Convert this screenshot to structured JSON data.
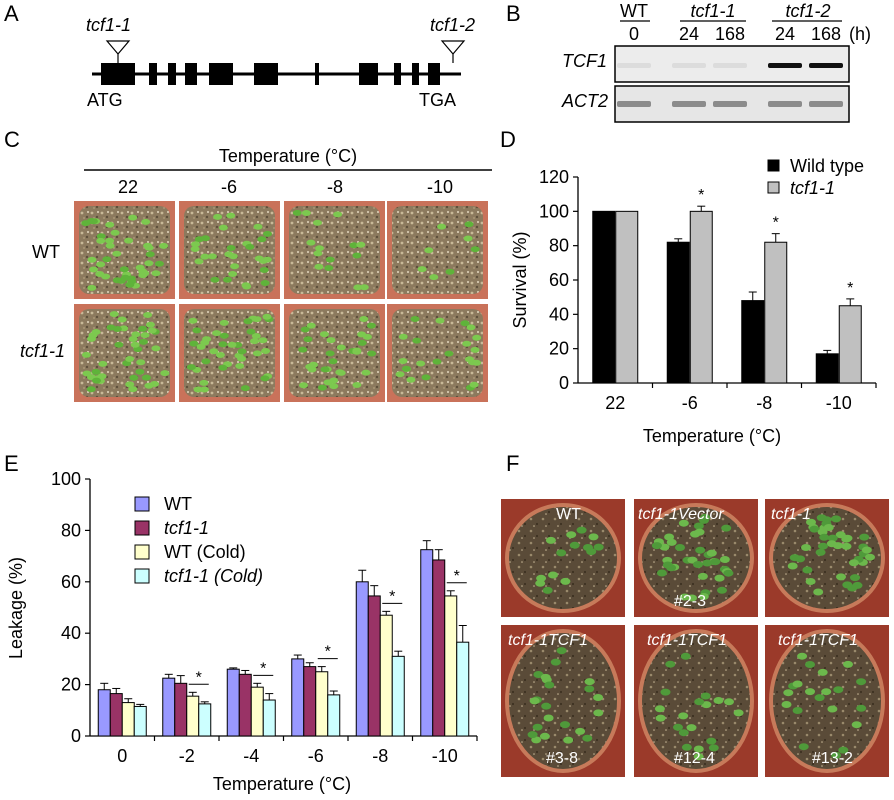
{
  "panel_labels": {
    "a": "A",
    "b": "B",
    "c": "C",
    "d": "D",
    "e": "E",
    "f": "F"
  },
  "panel_a": {
    "insert_left": "tcf1-1",
    "insert_right": "tcf1-2",
    "start_codon": "ATG",
    "stop_codon": "TGA"
  },
  "panel_b": {
    "groups": [
      "WT",
      "tcf1-1",
      "tcf1-2"
    ],
    "timepoints": [
      "0",
      "24",
      "168",
      "24",
      "168"
    ],
    "unit": "(h)",
    "rows": [
      "TCF1",
      "ACT2"
    ],
    "tcf1_band_intensity": [
      0,
      0,
      0,
      1,
      1
    ]
  },
  "panel_c": {
    "header": "Temperature (°C)",
    "columns": [
      "22",
      "-6",
      "-8",
      "-10"
    ],
    "rows": [
      "WT",
      "tcf1-1"
    ]
  },
  "panel_f": {
    "top_labels": [
      "WT",
      "tcf1-1Vector",
      "tcf1-1"
    ],
    "top_sub": [
      "",
      "#2-3",
      ""
    ],
    "bottom_labels": [
      "tcf1-1TCF1",
      "tcf1-1TCF1",
      "tcf1-1TCF1"
    ],
    "bottom_sub": [
      "#3-8",
      "#12-4",
      "#13-2"
    ]
  },
  "chart_data": [
    {
      "panel": "D",
      "type": "bar",
      "categories": [
        "22",
        "-6",
        "-8",
        "-10"
      ],
      "series": [
        {
          "name": "Wild type",
          "values": [
            100,
            82,
            48,
            17
          ],
          "errors": [
            0,
            2,
            5,
            2
          ],
          "color": "#000000"
        },
        {
          "name": "tcf1-1",
          "values": [
            100,
            100,
            82,
            45
          ],
          "errors": [
            0,
            3,
            5,
            4
          ],
          "color": "#c0c0c0"
        }
      ],
      "significance": [
        "",
        "*",
        "*",
        "*"
      ],
      "xlabel": "Temperature (°C)",
      "ylabel": "Survival (%)",
      "ylim": [
        0,
        120
      ],
      "yticks": [
        0,
        20,
        40,
        60,
        80,
        100,
        120
      ],
      "legend": "top-right"
    },
    {
      "panel": "E",
      "type": "bar",
      "categories": [
        "0",
        "-2",
        "-4",
        "-6",
        "-8",
        "-10"
      ],
      "series": [
        {
          "name": "WT",
          "values": [
            18,
            22.5,
            26,
            30,
            60,
            72.5
          ],
          "errors": [
            2.5,
            1.5,
            0.5,
            1.5,
            4.5,
            3.5
          ],
          "color": "#9999ff"
        },
        {
          "name": "tcf1-1",
          "values": [
            16.5,
            20.5,
            24,
            27,
            54.5,
            68.5
          ],
          "errors": [
            2,
            3,
            1.5,
            1.5,
            4,
            4
          ],
          "color": "#993366"
        },
        {
          "name": "WT (Cold)",
          "values": [
            13,
            15.5,
            19,
            25,
            47,
            54.5
          ],
          "errors": [
            1.5,
            1.5,
            1.5,
            2,
            1.5,
            2
          ],
          "color": "#ffffcc"
        },
        {
          "name": "tcf1-1 (Cold)",
          "values": [
            11.5,
            12.5,
            14,
            16,
            31,
            36.5
          ],
          "errors": [
            0.8,
            0.8,
            2.5,
            1.5,
            2,
            6.5
          ],
          "color": "#ccffff"
        }
      ],
      "significance": [
        "",
        "*",
        "*",
        "*",
        "*",
        "*"
      ],
      "xlabel": "Temperature (°C)",
      "ylabel": "Leakage (%)",
      "ylim": [
        0,
        100
      ],
      "yticks": [
        0,
        20,
        40,
        60,
        80,
        100
      ],
      "legend": "top-left"
    }
  ]
}
